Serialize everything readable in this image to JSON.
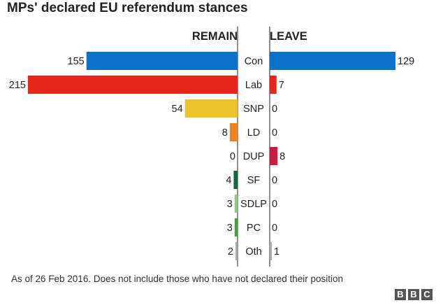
{
  "title": "MPs' declared EU referendum stances",
  "footnote": "As of 26 Feb 2016. Does not include those who have not declared their position",
  "logo_letters": [
    "B",
    "B",
    "C"
  ],
  "chart_data": {
    "type": "bar",
    "orientation": "horizontal-butterfly",
    "left_heading": "REMAIN",
    "right_heading": "LEAVE",
    "categories": [
      "Con",
      "Lab",
      "SNP",
      "LD",
      "DUP",
      "SF",
      "SDLP",
      "PC",
      "Oth"
    ],
    "series": [
      {
        "name": "REMAIN",
        "values": [
          155,
          215,
          54,
          8,
          0,
          4,
          3,
          3,
          2
        ]
      },
      {
        "name": "LEAVE",
        "values": [
          129,
          7,
          0,
          0,
          8,
          0,
          0,
          0,
          1
        ]
      }
    ],
    "colors": [
      "#0a72c8",
      "#e8251a",
      "#eec22a",
      "#f0821e",
      "#c41e47",
      "#0b6b3a",
      "#8cc77a",
      "#3fa63d",
      "#aaaaaa"
    ],
    "axis_color": "#222222",
    "xlim": [
      0,
      215
    ]
  }
}
